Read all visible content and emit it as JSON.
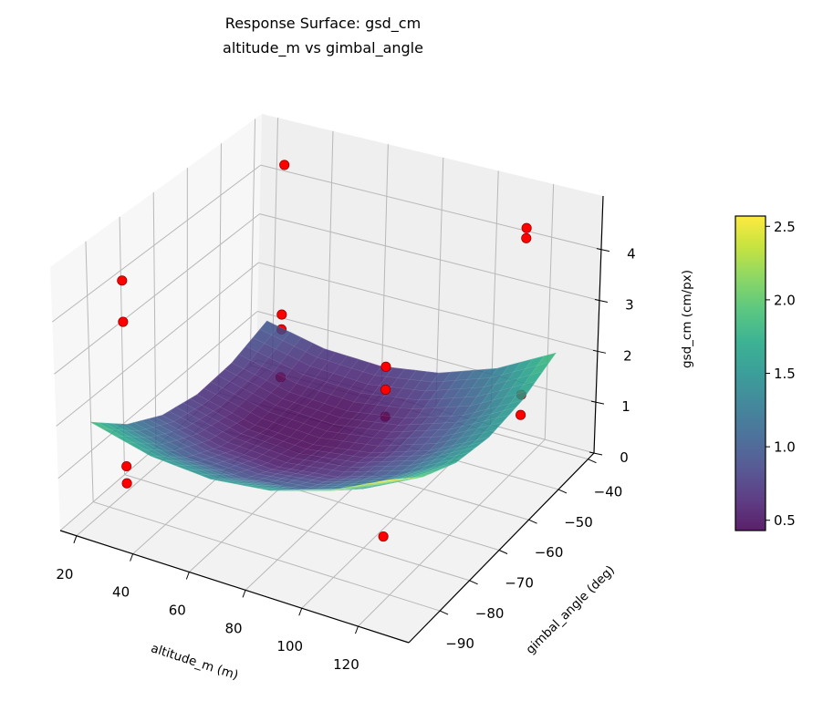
{
  "chart_data": {
    "type": "surface3d",
    "title": "Response Surface: gsd_cm",
    "subtitle": "altitude_m vs gimbal_angle",
    "xlabel": "altitude_m (m)",
    "ylabel": "gimbal_angle (deg)",
    "zlabel": "gsd_cm (cm/px)",
    "xlim": [
      14.2,
      138
    ],
    "ylim": [
      -100.5,
      -38
    ],
    "zlim": [
      0,
      5.05
    ],
    "xticks": [
      "20",
      "40",
      "60",
      "80",
      "100",
      "120"
    ],
    "yticks": [
      "−90",
      "−80",
      "−70",
      "−60",
      "−50",
      "−40"
    ],
    "zticks": [
      "0",
      "1",
      "2",
      "3",
      "4"
    ],
    "grid": true,
    "colormap": "viridis",
    "surface": {
      "x": [
        20,
        41,
        62,
        83,
        104,
        125
      ],
      "y": [
        -95,
        -84,
        -73,
        -62,
        -51,
        -40
      ],
      "z": [
        [
          1.9,
          1.61,
          1.53,
          1.67,
          2.03,
          2.6
        ],
        [
          1.29,
          1.0,
          0.94,
          1.08,
          1.45,
          2.03
        ],
        [
          0.89,
          0.62,
          0.56,
          0.71,
          1.08,
          1.67
        ],
        [
          0.71,
          0.44,
          0.39,
          0.56,
          0.94,
          1.53
        ],
        [
          0.75,
          0.49,
          0.44,
          0.62,
          1.0,
          1.61
        ],
        [
          1.0,
          0.75,
          0.71,
          0.89,
          1.29,
          1.9
        ]
      ]
    },
    "points": {
      "color": "#ff0000",
      "x": [
        26.5,
        26.5,
        26.5,
        26.5,
        31,
        31,
        31,
        31,
        91,
        91,
        91,
        107,
        113,
        113,
        113,
        113
      ],
      "y": [
        -90,
        -90,
        -90,
        -90,
        -45,
        -45,
        -45,
        -45,
        -65,
        -65,
        -65,
        -80,
        -40,
        -40,
        -40,
        -40
      ],
      "z": [
        4.5,
        3.7,
        0.9,
        0.57,
        4.6,
        1.57,
        1.27,
        0.3,
        2.55,
        2.1,
        1.57,
        0.34,
        4.2,
        4.0,
        0.9,
        0.5
      ]
    },
    "colorbar": {
      "range": [
        0.43,
        2.57
      ],
      "ticks": [
        "0.5",
        "1.0",
        "1.5",
        "2.0",
        "2.5"
      ],
      "tick_values": [
        0.5,
        1.0,
        1.5,
        2.0,
        2.5
      ],
      "placement": "right"
    }
  }
}
